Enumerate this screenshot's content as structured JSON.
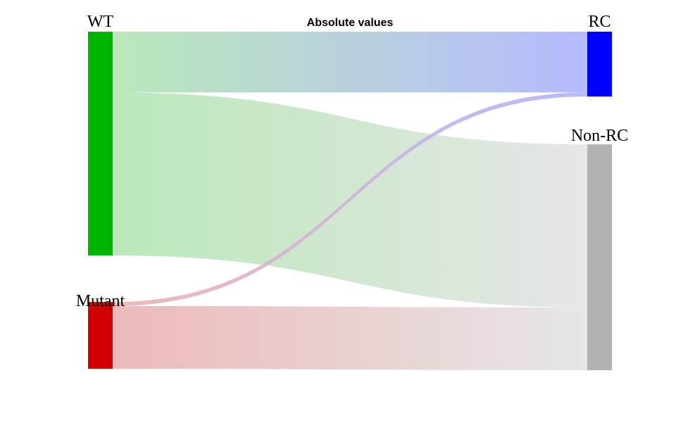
{
  "chart_data": {
    "type": "sankey",
    "title": "Absolute values",
    "nodes": {
      "left": [
        {
          "id": "WT",
          "label": "WT",
          "color": "#00b400"
        },
        {
          "id": "Mutant",
          "label": "Mutant",
          "color": "#d20000"
        }
      ],
      "right": [
        {
          "id": "RC",
          "label": "RC",
          "color": "#0000ff"
        },
        {
          "id": "NonRC",
          "label": "Non-RC",
          "color": "#b2b2b2"
        }
      ]
    },
    "links": [
      {
        "source": "WT",
        "target": "RC",
        "value": 89
      },
      {
        "source": "WT",
        "target": "NonRC",
        "value": 239
      },
      {
        "source": "Mutant",
        "target": "RC",
        "value": 6
      },
      {
        "source": "Mutant",
        "target": "NonRC",
        "value": 92
      }
    ],
    "link_colors": {
      "WT": "#b4e6b4",
      "Mutant": "#ebb4b4",
      "RC": "#b0b4ff",
      "NonRC": "#e4e4e4"
    }
  }
}
